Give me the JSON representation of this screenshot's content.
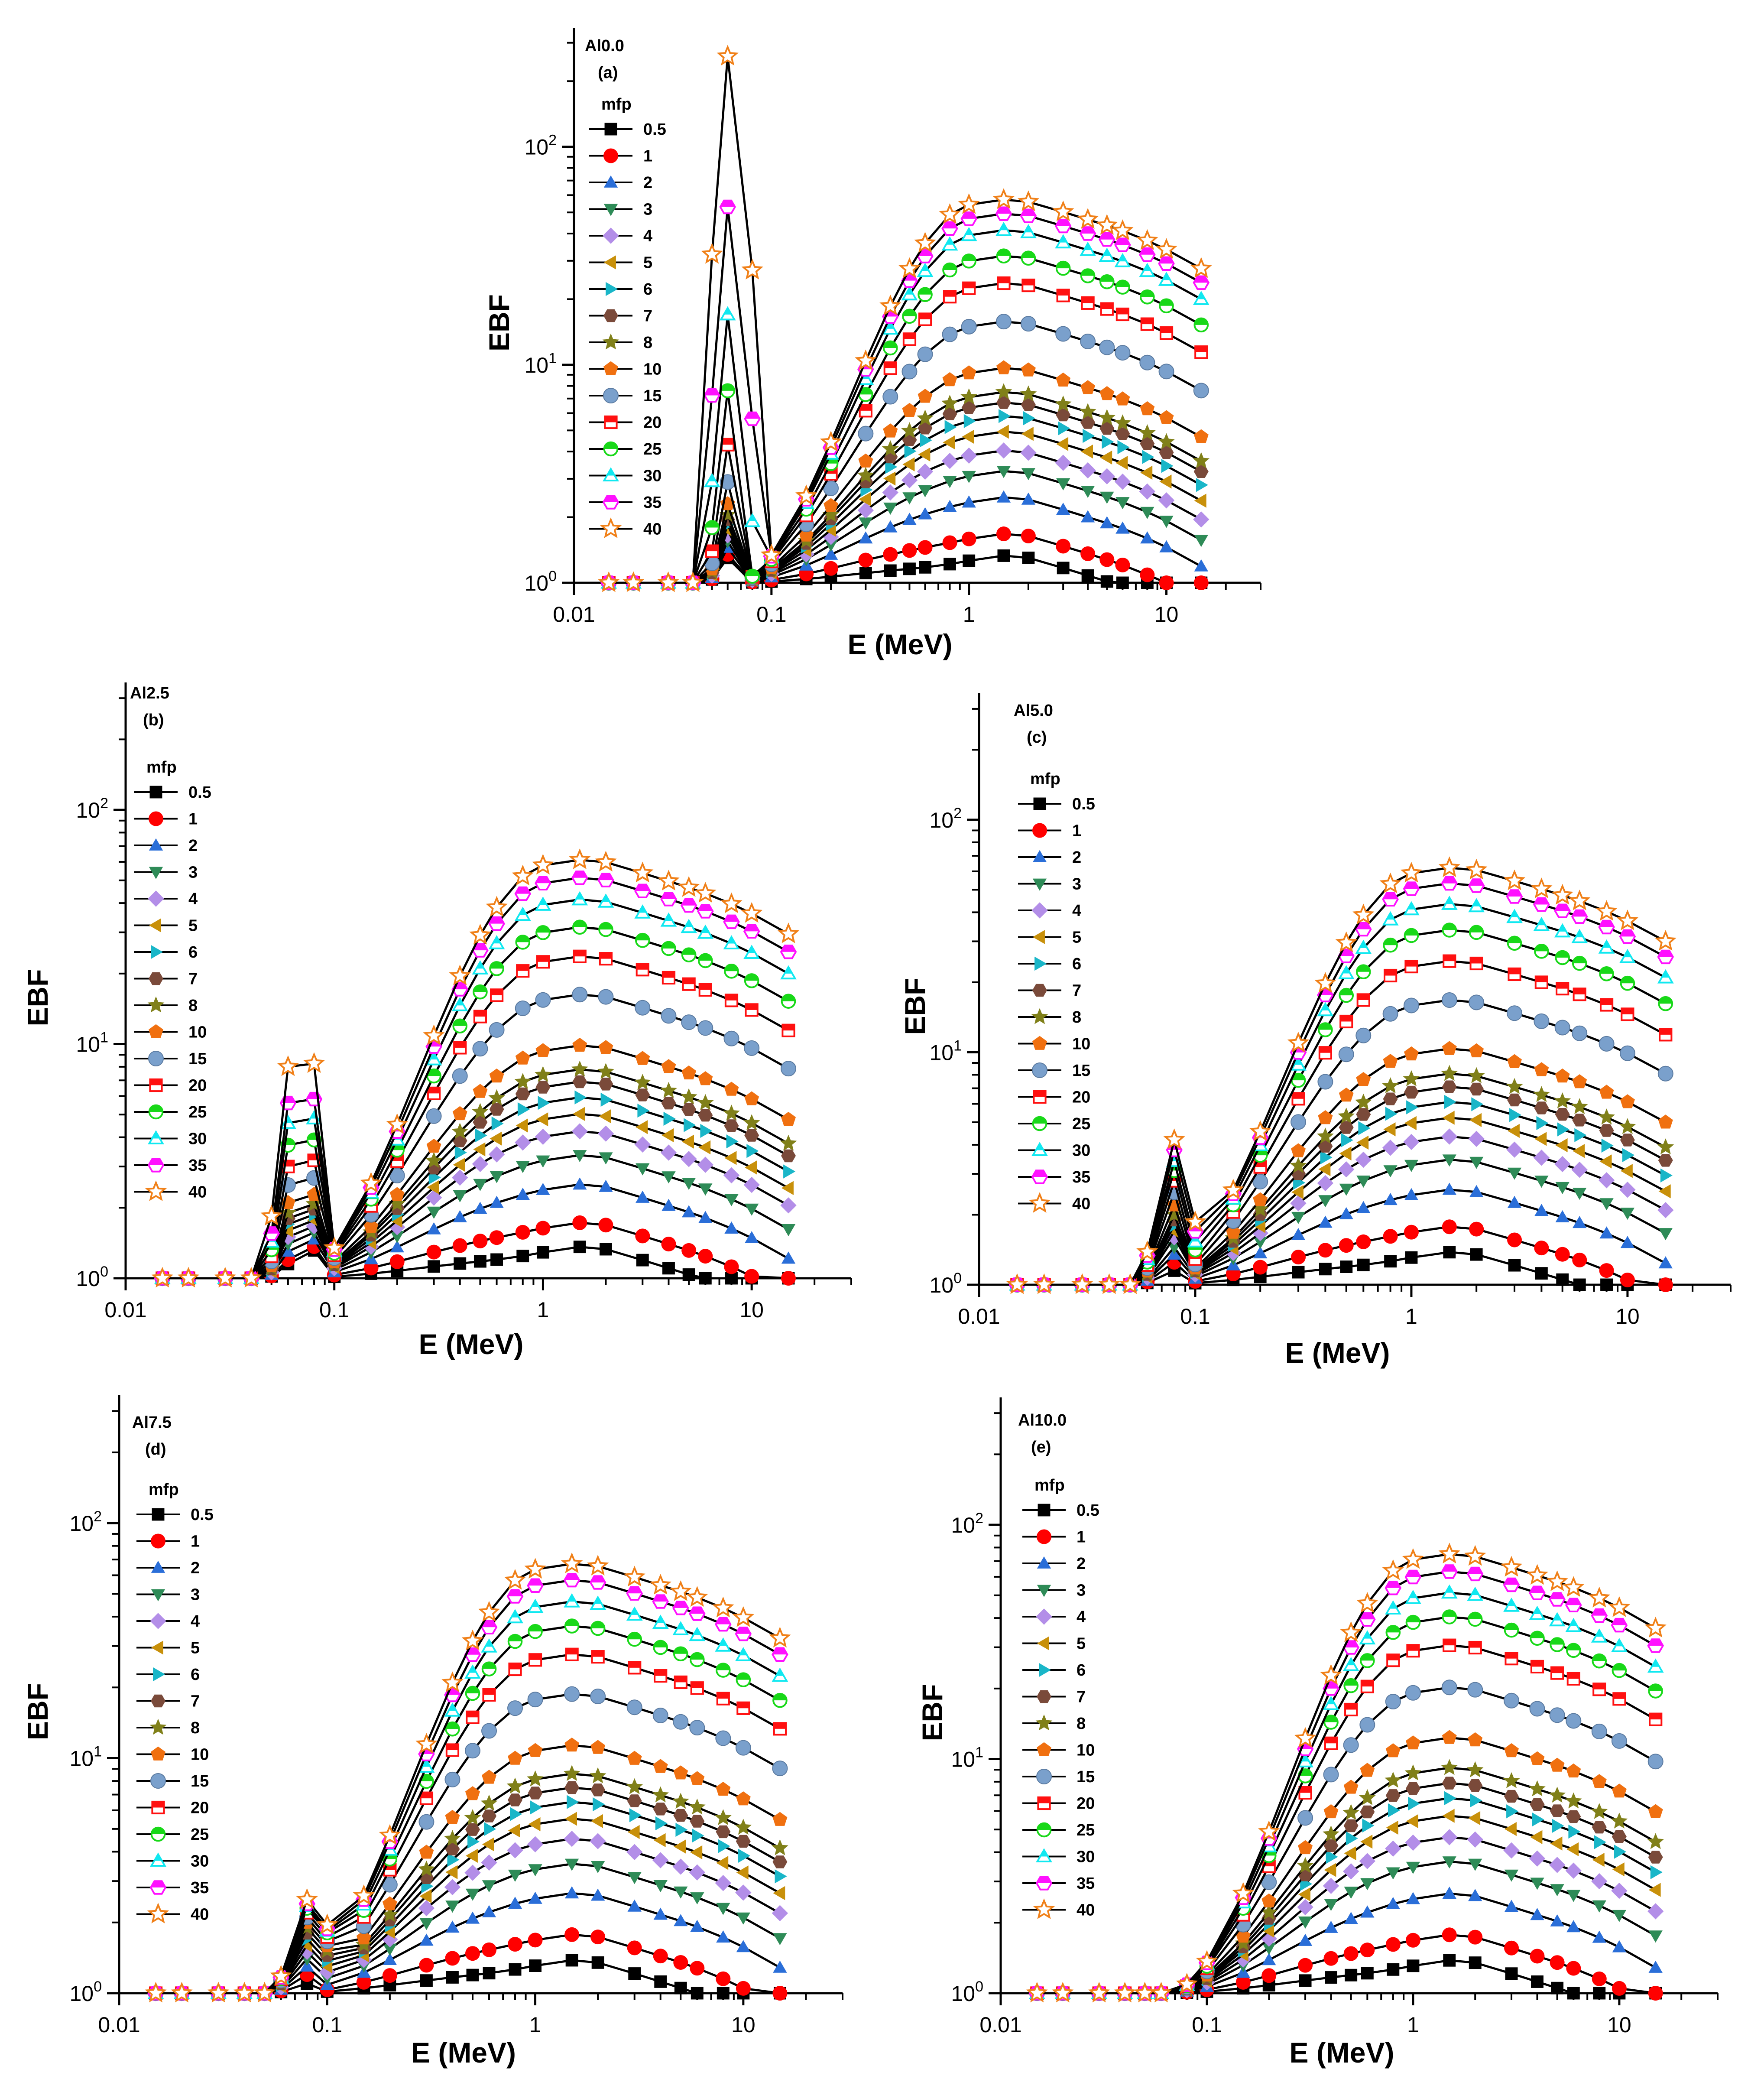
{
  "figure": {
    "title": ""
  },
  "chart_data": [
    {
      "type": "line",
      "panel_id": "a",
      "name": "Al0.0",
      "label": "(a)",
      "xlabel": "E (MeV)",
      "ylabel": "EBF",
      "x_scale": "log",
      "y_scale": "log",
      "xlim": [
        0.01,
        30
      ],
      "ylim": [
        1,
        350
      ],
      "x_ticks": [
        "0.01",
        "0.1",
        "1",
        "10"
      ],
      "y_ticks": [
        "10^0",
        "10^1",
        "10^2"
      ],
      "legend_title": "mfp",
      "legend_position": "top-left",
      "energies": [
        0.015,
        0.02,
        0.03,
        0.04,
        0.05,
        0.06,
        0.08,
        0.1,
        0.15,
        0.2,
        0.3,
        0.4,
        0.5,
        0.6,
        0.8,
        1,
        1.5,
        2,
        3,
        4,
        5,
        6,
        8,
        10,
        15
      ],
      "peak": {
        "at_energy": 0.06,
        "top": 260,
        "next": 30,
        "floor": 1.5
      },
      "series": [
        {
          "name": "0.5",
          "peak": 1.3,
          "max": 1.35
        },
        {
          "name": "1",
          "peak": 1.35,
          "max": 1.7
        },
        {
          "name": "2",
          "peak": 1.45,
          "max": 2.5
        },
        {
          "name": "3",
          "peak": 1.55,
          "max": 3.3
        },
        {
          "name": "4",
          "peak": 1.65,
          "max": 4.1
        },
        {
          "name": "5",
          "peak": 1.75,
          "max": 5.0
        },
        {
          "name": "6",
          "peak": 1.85,
          "max": 5.9
        },
        {
          "name": "7",
          "peak": 1.95,
          "max": 6.8
        },
        {
          "name": "8",
          "peak": 2.05,
          "max": 7.6
        },
        {
          "name": "10",
          "peak": 2.3,
          "max": 9.8
        },
        {
          "name": "15",
          "peak": 2.9,
          "max": 16
        },
        {
          "name": "20",
          "peak": 4.3,
          "max": 24
        },
        {
          "name": "25",
          "peak": 7.6,
          "max": 32
        },
        {
          "name": "30",
          "peak": 17,
          "max": 42
        },
        {
          "name": "35",
          "peak": 53,
          "max": 50
        },
        {
          "name": "40",
          "peak": 260,
          "max": 58
        }
      ]
    },
    {
      "type": "line",
      "panel_id": "b",
      "name": "Al2.5",
      "label": "(b)",
      "xlabel": "E (MeV)",
      "ylabel": "EBF",
      "x_scale": "log",
      "y_scale": "log",
      "xlim": [
        0.01,
        30
      ],
      "ylim": [
        1,
        350
      ],
      "x_ticks": [
        "0.01",
        "0.1",
        "1",
        "10"
      ],
      "y_ticks": [
        "10^0",
        "10^1",
        "10^2"
      ],
      "legend_title": "mfp",
      "legend_position": "top-left",
      "energies": [
        0.015,
        0.02,
        0.03,
        0.04,
        0.05,
        0.06,
        0.08,
        0.1,
        0.15,
        0.2,
        0.3,
        0.4,
        0.5,
        0.6,
        0.8,
        1,
        1.5,
        2,
        3,
        4,
        5,
        6,
        8,
        10,
        15
      ],
      "peak": {
        "at_energy": 0.06,
        "top": 8,
        "next": 9,
        "floor": 1.6
      },
      "series": [
        {
          "name": "0.5",
          "peak": 1.15,
          "max": 1.38
        },
        {
          "name": "1",
          "peak": 1.2,
          "max": 1.75
        },
        {
          "name": "2",
          "peak": 1.3,
          "max": 2.55
        },
        {
          "name": "3",
          "peak": 1.4,
          "max": 3.4
        },
        {
          "name": "4",
          "peak": 1.5,
          "max": 4.3
        },
        {
          "name": "5",
          "peak": 1.6,
          "max": 5.1
        },
        {
          "name": "6",
          "peak": 1.7,
          "max": 6.0
        },
        {
          "name": "7",
          "peak": 1.8,
          "max": 7.0
        },
        {
          "name": "8",
          "peak": 1.9,
          "max": 7.9
        },
        {
          "name": "10",
          "peak": 2.1,
          "max": 10
        },
        {
          "name": "15",
          "peak": 2.5,
          "max": 16.5
        },
        {
          "name": "20",
          "peak": 3.0,
          "max": 24
        },
        {
          "name": "25",
          "peak": 3.7,
          "max": 32
        },
        {
          "name": "30",
          "peak": 4.6,
          "max": 42
        },
        {
          "name": "35",
          "peak": 5.6,
          "max": 52
        },
        {
          "name": "40",
          "peak": 8,
          "max": 62
        }
      ]
    },
    {
      "type": "line",
      "panel_id": "c",
      "name": "Al5.0",
      "label": "(c)",
      "xlabel": "E (MeV)",
      "ylabel": "EBF",
      "x_scale": "log",
      "y_scale": "log",
      "xlim": [
        0.01,
        30
      ],
      "ylim": [
        1,
        350
      ],
      "x_ticks": [
        "0.01",
        "0.1",
        "1",
        "10"
      ],
      "y_ticks": [
        "10^0",
        "10^1",
        "10^2"
      ],
      "legend_title": "mfp",
      "legend_position": "top-left",
      "energies": [
        0.015,
        0.02,
        0.03,
        0.04,
        0.05,
        0.06,
        0.08,
        0.1,
        0.15,
        0.2,
        0.3,
        0.4,
        0.5,
        0.6,
        0.8,
        1,
        1.5,
        2,
        3,
        4,
        5,
        6,
        8,
        10,
        15
      ],
      "peak": {
        "at_energy": 0.08,
        "top": 4.2,
        "next": 1.9,
        "floor": 1.4
      },
      "series": [
        {
          "name": "0.5",
          "peak": 1.15,
          "max": 1.4
        },
        {
          "name": "1",
          "peak": 1.25,
          "max": 1.8
        },
        {
          "name": "2",
          "peak": 1.35,
          "max": 2.6
        },
        {
          "name": "3",
          "peak": 1.45,
          "max": 3.5
        },
        {
          "name": "4",
          "peak": 1.6,
          "max": 4.4
        },
        {
          "name": "5",
          "peak": 1.7,
          "max": 5.3
        },
        {
          "name": "6",
          "peak": 1.8,
          "max": 6.2
        },
        {
          "name": "7",
          "peak": 1.9,
          "max": 7.2
        },
        {
          "name": "8",
          "peak": 2.0,
          "max": 8.2
        },
        {
          "name": "10",
          "peak": 2.2,
          "max": 10.5
        },
        {
          "name": "15",
          "peak": 2.5,
          "max": 17
        },
        {
          "name": "20",
          "peak": 2.8,
          "max": 25
        },
        {
          "name": "25",
          "peak": 3.1,
          "max": 34
        },
        {
          "name": "30",
          "peak": 3.4,
          "max": 44
        },
        {
          "name": "35",
          "peak": 3.8,
          "max": 54
        },
        {
          "name": "40",
          "peak": 4.2,
          "max": 63
        }
      ]
    },
    {
      "type": "line",
      "panel_id": "d",
      "name": "Al7.5",
      "label": "(d)",
      "xlabel": "E (MeV)",
      "ylabel": "EBF",
      "x_scale": "log",
      "y_scale": "log",
      "xlim": [
        0.01,
        30
      ],
      "ylim": [
        1,
        350
      ],
      "x_ticks": [
        "0.01",
        "0.1",
        "1",
        "10"
      ],
      "y_ticks": [
        "10^0",
        "10^1",
        "10^2"
      ],
      "legend_title": "mfp",
      "legend_position": "top-left",
      "energies": [
        0.015,
        0.02,
        0.03,
        0.04,
        0.05,
        0.06,
        0.08,
        0.1,
        0.15,
        0.2,
        0.3,
        0.4,
        0.5,
        0.6,
        0.8,
        1,
        1.5,
        2,
        3,
        4,
        5,
        6,
        8,
        10,
        15
      ],
      "peak": {
        "at_energy": 0.08,
        "top": 2.5,
        "next": 2.0,
        "floor": 1.4
      },
      "series": [
        {
          "name": "0.5",
          "peak": 1.1,
          "max": 1.4
        },
        {
          "name": "1",
          "peak": 1.2,
          "max": 1.8
        },
        {
          "name": "2",
          "peak": 1.3,
          "max": 2.7
        },
        {
          "name": "3",
          "peak": 1.4,
          "max": 3.6
        },
        {
          "name": "4",
          "peak": 1.5,
          "max": 4.6
        },
        {
          "name": "5",
          "peak": 1.6,
          "max": 5.6
        },
        {
          "name": "6",
          "peak": 1.7,
          "max": 6.6
        },
        {
          "name": "7",
          "peak": 1.8,
          "max": 7.6
        },
        {
          "name": "8",
          "peak": 1.9,
          "max": 8.7
        },
        {
          "name": "10",
          "peak": 2.0,
          "max": 11.5
        },
        {
          "name": "15",
          "peak": 2.1,
          "max": 19
        },
        {
          "name": "20",
          "peak": 2.2,
          "max": 28
        },
        {
          "name": "25",
          "peak": 2.3,
          "max": 37
        },
        {
          "name": "30",
          "peak": 2.35,
          "max": 47
        },
        {
          "name": "35",
          "peak": 2.4,
          "max": 58
        },
        {
          "name": "40",
          "peak": 2.5,
          "max": 68
        }
      ]
    },
    {
      "type": "line",
      "panel_id": "e",
      "name": "Al10.0",
      "label": "(e)",
      "xlabel": "E (MeV)",
      "ylabel": "EBF",
      "x_scale": "log",
      "y_scale": "log",
      "xlim": [
        0.01,
        30
      ],
      "ylim": [
        1,
        350
      ],
      "x_ticks": [
        "0.01",
        "0.1",
        "1",
        "10"
      ],
      "y_ticks": [
        "10^0",
        "10^1",
        "10^2"
      ],
      "legend_title": "mfp",
      "legend_position": "top-left",
      "energies": [
        0.015,
        0.02,
        0.03,
        0.04,
        0.05,
        0.06,
        0.08,
        0.1,
        0.15,
        0.2,
        0.3,
        0.4,
        0.5,
        0.6,
        0.8,
        1,
        1.5,
        2,
        3,
        4,
        5,
        6,
        8,
        10,
        15
      ],
      "peak": null,
      "series": [
        {
          "name": "0.5",
          "peak": null,
          "max": 1.4
        },
        {
          "name": "1",
          "peak": null,
          "max": 1.8
        },
        {
          "name": "2",
          "peak": null,
          "max": 2.7
        },
        {
          "name": "3",
          "peak": null,
          "max": 3.7
        },
        {
          "name": "4",
          "peak": null,
          "max": 4.7
        },
        {
          "name": "5",
          "peak": null,
          "max": 5.8
        },
        {
          "name": "6",
          "peak": null,
          "max": 6.9
        },
        {
          "name": "7",
          "peak": null,
          "max": 8.0
        },
        {
          "name": "8",
          "peak": null,
          "max": 9.3
        },
        {
          "name": "10",
          "peak": null,
          "max": 12.5
        },
        {
          "name": "15",
          "peak": null,
          "max": 20.5
        },
        {
          "name": "20",
          "peak": null,
          "max": 31
        },
        {
          "name": "25",
          "peak": null,
          "max": 41
        },
        {
          "name": "30",
          "peak": null,
          "max": 52
        },
        {
          "name": "35",
          "peak": null,
          "max": 64
        },
        {
          "name": "40",
          "peak": null,
          "max": 76
        }
      ]
    }
  ],
  "series_style": [
    {
      "name": "0.5",
      "marker": "square",
      "color": "#000000",
      "filled": true
    },
    {
      "name": "1",
      "marker": "circle",
      "color": "#ff0000",
      "filled": true
    },
    {
      "name": "2",
      "marker": "triangle-up",
      "color": "#2a6ed8",
      "filled": true
    },
    {
      "name": "3",
      "marker": "triangle-down",
      "color": "#2e8b57",
      "filled": true
    },
    {
      "name": "4",
      "marker": "diamond",
      "color": "#b38ee8",
      "filled": true
    },
    {
      "name": "5",
      "marker": "triangle-left",
      "color": "#c8900a",
      "filled": true
    },
    {
      "name": "6",
      "marker": "triangle-right",
      "color": "#19b6c8",
      "filled": true
    },
    {
      "name": "7",
      "marker": "hexagon",
      "color": "#7a4a3a",
      "filled": true
    },
    {
      "name": "8",
      "marker": "star",
      "color": "#808019",
      "filled": true
    },
    {
      "name": "10",
      "marker": "pentagon",
      "color": "#f07010",
      "filled": true
    },
    {
      "name": "15",
      "marker": "sphere",
      "color": "#7aa0cc",
      "filled": true
    },
    {
      "name": "20",
      "marker": "half-square",
      "color": "#ff1010",
      "filled": false
    },
    {
      "name": "25",
      "marker": "half-circle",
      "color": "#18d818",
      "filled": false
    },
    {
      "name": "30",
      "marker": "half-triangle",
      "color": "#10e8f0",
      "filled": false
    },
    {
      "name": "35",
      "marker": "half-hexagon",
      "color": "#ff10ff",
      "filled": false
    },
    {
      "name": "40",
      "marker": "open-star",
      "color": "#f08018",
      "filled": false
    }
  ]
}
